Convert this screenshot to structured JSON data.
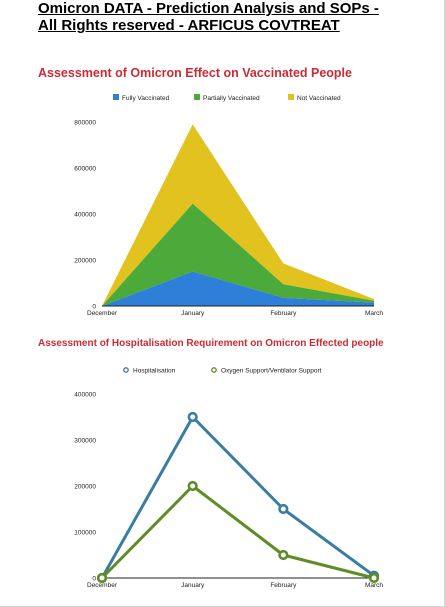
{
  "document": {
    "title_line1": "Omicron DATA - Prediction Analysis and SOPs -",
    "title_line2": "All Rights reserved - ARFICUS COVTREAT"
  },
  "chart_data": [
    {
      "type": "area",
      "stacked": true,
      "title": "Assessment of Omicron Effect on Vaccinated People",
      "categories": [
        "December",
        "January",
        "February",
        "March"
      ],
      "series": [
        {
          "name": "Fully Vaccinated",
          "values": [
            0,
            150000,
            35000,
            15000
          ],
          "color": "#2e7fd8"
        },
        {
          "name": "Partially Vaccinated",
          "values": [
            0,
            295000,
            60000,
            8000
          ],
          "color": "#4caa3a"
        },
        {
          "name": "Not Vaccinated",
          "values": [
            0,
            345000,
            90000,
            7000
          ],
          "color": "#e2c21e"
        }
      ],
      "yticks": [
        0,
        200000,
        400000,
        600000,
        800000
      ],
      "ylim": [
        0,
        800000
      ],
      "legend": "top"
    },
    {
      "type": "line",
      "title": "Assessment of Hospitalisation Requirement on Omicron Effected people",
      "categories": [
        "December",
        "January",
        "February",
        "March"
      ],
      "series": [
        {
          "name": "Hospitalisation",
          "values": [
            0,
            350000,
            150000,
            5000
          ],
          "color": "#3b7ca3"
        },
        {
          "name": "Oxygen Support/Ventilator Support",
          "values": [
            0,
            200000,
            50000,
            0
          ],
          "color": "#5e8c26"
        }
      ],
      "yticks": [
        0,
        100000,
        200000,
        300000,
        400000
      ],
      "ylim": [
        0,
        400000
      ],
      "legend": "top"
    }
  ]
}
